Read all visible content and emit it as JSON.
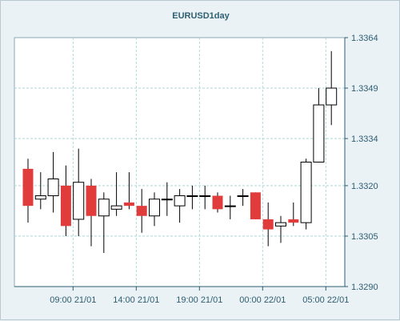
{
  "chart_data": {
    "type": "candlestick",
    "title": "EURUSD1day",
    "xlabel": "",
    "ylabel": "",
    "ylim": [
      1.329,
      1.3364
    ],
    "y_ticks": [
      "1.3364",
      "1.3349",
      "1.3334",
      "1.3320",
      "1.3305",
      "1.3290"
    ],
    "x_ticks": [
      "09:00 21/01",
      "14:00 21/01",
      "19:00 21/01",
      "00:00 22/01",
      "05:00 22/01"
    ],
    "grid": true,
    "colors": {
      "up": "#ffffff",
      "down": "#e03c3c",
      "outline": "#000000",
      "grid": "#9fd3d3",
      "axis": "#2d5d72"
    },
    "candles": [
      {
        "open": 1.3325,
        "high": 1.3328,
        "low": 1.3309,
        "close": 1.3314
      },
      {
        "open": 1.3316,
        "high": 1.3324,
        "low": 1.3313,
        "close": 1.3317
      },
      {
        "open": 1.3317,
        "high": 1.333,
        "low": 1.3312,
        "close": 1.3322
      },
      {
        "open": 1.332,
        "high": 1.3326,
        "low": 1.3305,
        "close": 1.3308
      },
      {
        "open": 1.331,
        "high": 1.3331,
        "low": 1.3305,
        "close": 1.3321
      },
      {
        "open": 1.332,
        "high": 1.3322,
        "low": 1.3302,
        "close": 1.3311
      },
      {
        "open": 1.3311,
        "high": 1.3318,
        "low": 1.33,
        "close": 1.3316
      },
      {
        "open": 1.3313,
        "high": 1.3324,
        "low": 1.3311,
        "close": 1.3314
      },
      {
        "open": 1.3315,
        "high": 1.3324,
        "low": 1.3313,
        "close": 1.3314
      },
      {
        "open": 1.3314,
        "high": 1.3319,
        "low": 1.3306,
        "close": 1.3311
      },
      {
        "open": 1.3311,
        "high": 1.3318,
        "low": 1.3308,
        "close": 1.3316
      },
      {
        "open": 1.3316,
        "high": 1.3321,
        "low": 1.3311,
        "close": 1.3316
      },
      {
        "open": 1.3314,
        "high": 1.3319,
        "low": 1.3309,
        "close": 1.3317
      },
      {
        "open": 1.3317,
        "high": 1.332,
        "low": 1.3313,
        "close": 1.3317
      },
      {
        "open": 1.3317,
        "high": 1.332,
        "low": 1.3313,
        "close": 1.3317
      },
      {
        "open": 1.3317,
        "high": 1.3318,
        "low": 1.3312,
        "close": 1.3313
      },
      {
        "open": 1.3314,
        "high": 1.3317,
        "low": 1.331,
        "close": 1.3314
      },
      {
        "open": 1.3317,
        "high": 1.3319,
        "low": 1.3314,
        "close": 1.3317
      },
      {
        "open": 1.3318,
        "high": 1.3318,
        "low": 1.331,
        "close": 1.331
      },
      {
        "open": 1.331,
        "high": 1.3315,
        "low": 1.3302,
        "close": 1.3307
      },
      {
        "open": 1.3308,
        "high": 1.3311,
        "low": 1.3303,
        "close": 1.3309
      },
      {
        "open": 1.331,
        "high": 1.3315,
        "low": 1.3308,
        "close": 1.3309
      },
      {
        "open": 1.3309,
        "high": 1.3328,
        "low": 1.3307,
        "close": 1.3327
      },
      {
        "open": 1.3327,
        "high": 1.3349,
        "low": 1.3327,
        "close": 1.3344
      },
      {
        "open": 1.3344,
        "high": 1.336,
        "low": 1.3338,
        "close": 1.3349
      }
    ]
  }
}
